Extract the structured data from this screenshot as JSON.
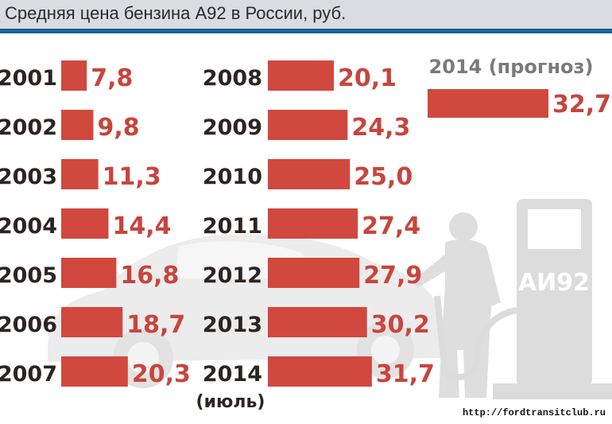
{
  "chart_data": {
    "type": "bar",
    "title": "Средняя цена бензина А92 в России, руб.",
    "categories": [
      "2001",
      "2002",
      "2003",
      "2004",
      "2005",
      "2006",
      "2007",
      "2008",
      "2009",
      "2010",
      "2011",
      "2012",
      "2013",
      "2014"
    ],
    "values": [
      7.8,
      9.8,
      11.3,
      14.4,
      16.8,
      18.7,
      20.3,
      20.1,
      24.3,
      25.0,
      27.4,
      27.9,
      30.2,
      31.7
    ],
    "value_labels": [
      "7,8",
      "9,8",
      "11,3",
      "14,4",
      "16,8",
      "18,7",
      "20,3",
      "20,1",
      "24,3",
      "25,0",
      "27,4",
      "27,9",
      "30,2",
      "31,7"
    ],
    "last_note": "(июль)",
    "forecast": {
      "label": "2014 (прогноз)",
      "value": 32.7,
      "value_label": "32,7"
    },
    "orientation": "horizontal",
    "grid": false
  },
  "pump_label": "АИ92",
  "source": "http://fordtransitclub.ru",
  "colors": {
    "bar": "#d1483f",
    "value_text": "#c8453d",
    "header_bg": "#d9dde1",
    "header_line": "#1e5f9b"
  }
}
